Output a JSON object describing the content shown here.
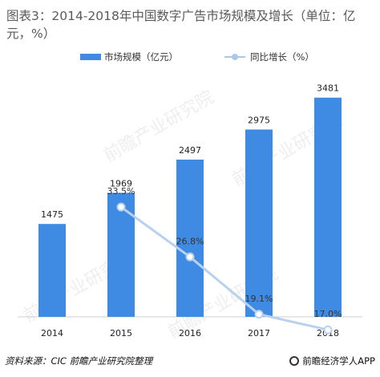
{
  "title": "图表3：2014-2018年中国数字广告市场规模及增长（单位：亿元，%）",
  "legend": {
    "bar_label": "市场规模（亿元）",
    "line_label": "同比增长（%）"
  },
  "colors": {
    "bar": "#3f8ae2",
    "line": "#b7d1ee",
    "axis": "#cfcfcf",
    "label": "#222222",
    "pct_label": "#333333"
  },
  "chart_data": {
    "type": "bar",
    "title": "图表3：2014-2018年中国数字广告市场规模及增长（单位：亿元，%）",
    "categories": [
      "2014",
      "2015",
      "2016",
      "2017",
      "2018"
    ],
    "series": [
      {
        "name": "市场规模（亿元）",
        "type": "bar",
        "values": [
          1475,
          1969,
          2497,
          2975,
          3481
        ],
        "labels": [
          "1475",
          "1969",
          "2497",
          "2975",
          "3481"
        ]
      },
      {
        "name": "同比增长（%）",
        "type": "line",
        "values": [
          null,
          33.5,
          26.8,
          19.1,
          17.0
        ],
        "labels": [
          "",
          "33.5%",
          "26.8%",
          "19.1%",
          "17.0%"
        ]
      }
    ],
    "legend_position": "top",
    "grid": false
  },
  "footer": {
    "source": "资料来源：CIC  前瞻产业研究院整理",
    "brand": "前瞻经济学人APP"
  },
  "watermark": "前瞻产业研究院"
}
